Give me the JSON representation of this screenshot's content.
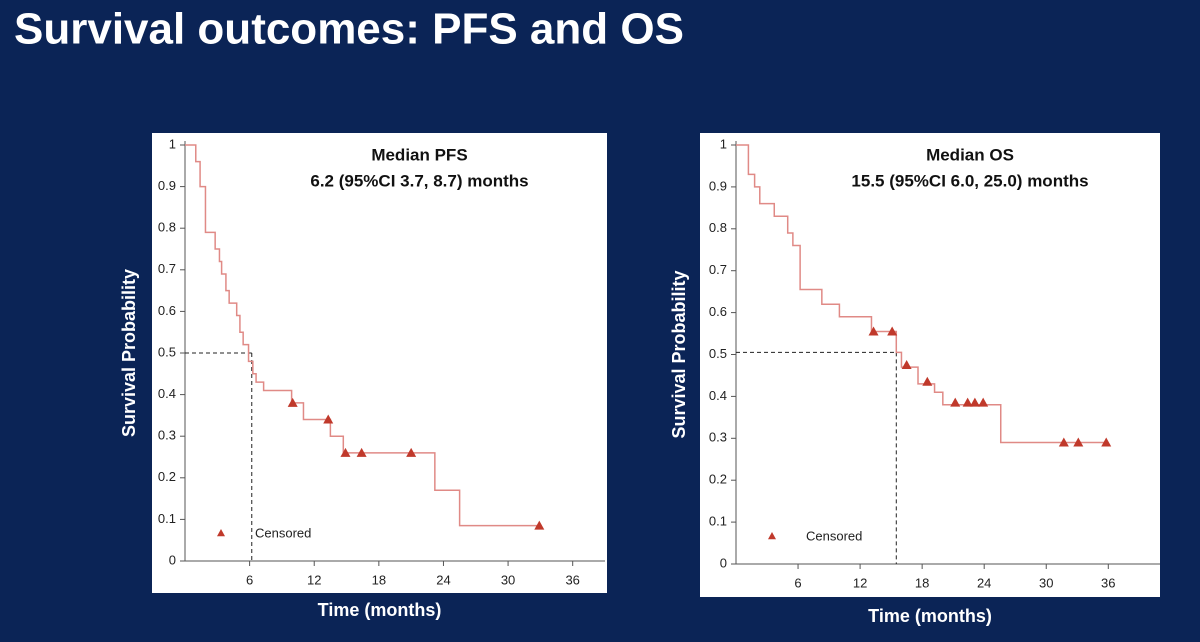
{
  "title": "Survival outcomes: PFS and OS",
  "chart_data": [
    {
      "type": "step",
      "annotation": [
        "Median PFS",
        "6.2 (95%CI 3.7, 8.7) months"
      ],
      "y_label": "Survival Probability",
      "x_label": "Time (months)",
      "xlim": [
        0,
        39
      ],
      "ylim": [
        0,
        1
      ],
      "xticks": [
        6,
        12,
        18,
        24,
        30,
        36
      ],
      "yticks": [
        0,
        0.1,
        0.2,
        0.3,
        0.4,
        0.5,
        0.6,
        0.7,
        0.8,
        0.9,
        1
      ],
      "median": {
        "x": 6.2,
        "y": 0.5
      },
      "curve": {
        "color": "#e08a86",
        "x": [
          0,
          1.0,
          1.4,
          1.9,
          2.8,
          3.2,
          3.4,
          3.8,
          4.1,
          4.8,
          5.1,
          5.4,
          5.9,
          6.3,
          6.6,
          7.3,
          9.9,
          11.0,
          13.5,
          14.7,
          23.2,
          25.5,
          32.9
        ],
        "values": [
          1,
          0.96,
          0.9,
          0.79,
          0.75,
          0.72,
          0.69,
          0.65,
          0.62,
          0.59,
          0.55,
          0.52,
          0.48,
          0.45,
          0.43,
          0.41,
          0.38,
          0.34,
          0.3,
          0.26,
          0.17,
          0.085,
          0.085
        ]
      },
      "censored": {
        "name": "Censored",
        "color": "#c0392b",
        "x": [
          10.0,
          13.3,
          14.9,
          16.4,
          21.0,
          32.9
        ],
        "values": [
          0.38,
          0.34,
          0.26,
          0.26,
          0.26,
          0.085
        ]
      }
    },
    {
      "type": "step",
      "annotation": [
        "Median OS",
        "15.5 (95%CI 6.0, 25.0) months"
      ],
      "y_label": "Survival Probability",
      "x_label": "Time (months)",
      "xlim": [
        0,
        41
      ],
      "ylim": [
        0,
        1
      ],
      "xticks": [
        6,
        12,
        18,
        24,
        30,
        36
      ],
      "yticks": [
        0,
        0.1,
        0.2,
        0.3,
        0.4,
        0.5,
        0.6,
        0.7,
        0.8,
        0.9,
        1
      ],
      "median": {
        "x": 15.5,
        "y": 0.505
      },
      "curve": {
        "color": "#e08a86",
        "x": [
          0,
          1.2,
          1.8,
          2.3,
          3.7,
          5.0,
          5.5,
          6.2,
          8.3,
          10.0,
          13.1,
          15.5,
          16.0,
          17.6,
          19.2,
          20.0,
          25.6,
          36.0
        ],
        "values": [
          1,
          0.93,
          0.9,
          0.86,
          0.83,
          0.79,
          0.76,
          0.655,
          0.62,
          0.59,
          0.555,
          0.505,
          0.47,
          0.43,
          0.41,
          0.38,
          0.29,
          0.29
        ]
      },
      "censored": {
        "name": "Censored",
        "color": "#c0392b",
        "x": [
          13.3,
          15.1,
          16.5,
          18.5,
          21.2,
          22.4,
          23.1,
          23.9,
          31.7,
          33.1,
          35.8
        ],
        "values": [
          0.555,
          0.555,
          0.475,
          0.435,
          0.385,
          0.385,
          0.385,
          0.385,
          0.29,
          0.29,
          0.29
        ]
      }
    }
  ]
}
